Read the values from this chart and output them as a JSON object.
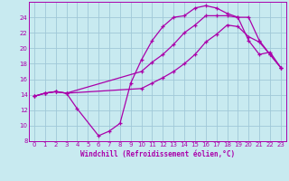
{
  "xlabel": "Windchill (Refroidissement éolien,°C)",
  "background_color": "#c8eaf0",
  "grid_color": "#a0c8d8",
  "line_color": "#aa00aa",
  "xlim": [
    -0.5,
    23.5
  ],
  "ylim": [
    8,
    26
  ],
  "xticks": [
    0,
    1,
    2,
    3,
    4,
    5,
    6,
    7,
    8,
    9,
    10,
    11,
    12,
    13,
    14,
    15,
    16,
    17,
    18,
    19,
    20,
    21,
    22,
    23
  ],
  "yticks": [
    8,
    10,
    12,
    14,
    16,
    18,
    20,
    22,
    24
  ],
  "curve1_x": [
    0,
    1,
    2,
    3,
    4,
    6,
    7,
    8,
    9,
    10,
    11,
    12,
    13,
    14,
    15,
    16,
    17,
    18,
    19,
    20,
    21,
    22,
    23
  ],
  "curve1_y": [
    13.8,
    14.2,
    14.4,
    14.2,
    12.2,
    8.7,
    9.3,
    10.3,
    15.5,
    18.5,
    21.0,
    22.8,
    24.0,
    24.2,
    25.2,
    25.5,
    25.2,
    24.5,
    24.0,
    21.0,
    19.2,
    19.5,
    17.5
  ],
  "curve2_x": [
    0,
    1,
    2,
    3,
    10,
    11,
    12,
    13,
    14,
    15,
    16,
    17,
    18,
    19,
    20,
    21,
    22,
    23
  ],
  "curve2_y": [
    13.8,
    14.2,
    14.4,
    14.2,
    17.0,
    18.2,
    19.2,
    20.5,
    22.0,
    23.0,
    24.2,
    24.2,
    24.2,
    24.0,
    24.0,
    21.0,
    19.2,
    17.5
  ],
  "curve3_x": [
    0,
    1,
    2,
    3,
    10,
    11,
    12,
    13,
    14,
    15,
    16,
    17,
    18,
    19,
    20,
    21,
    22,
    23
  ],
  "curve3_y": [
    13.8,
    14.2,
    14.4,
    14.2,
    14.8,
    15.5,
    16.2,
    17.0,
    18.0,
    19.2,
    20.8,
    21.8,
    23.0,
    22.8,
    21.5,
    20.8,
    19.2,
    17.5
  ]
}
